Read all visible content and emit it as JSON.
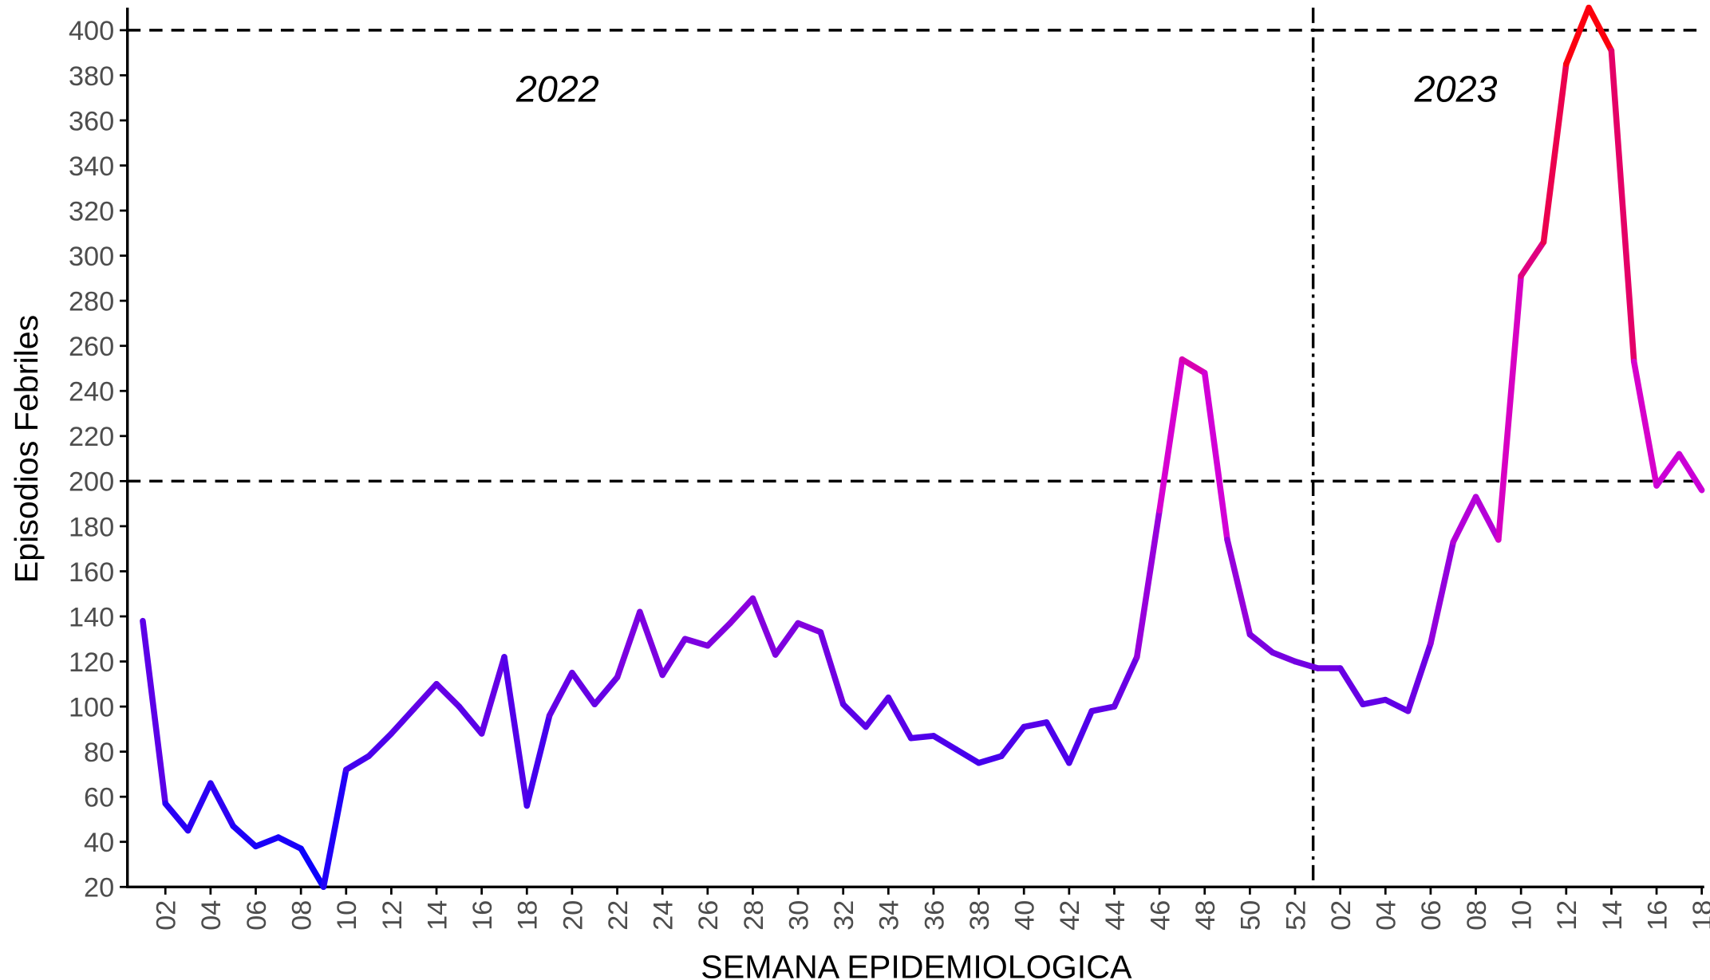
{
  "chart_data": {
    "type": "line",
    "x_label": "SEMANA EPIDEMIOLOGICA",
    "y_label": "Episodios Febriles",
    "ylim": [
      20,
      410
    ],
    "yticks": [
      20,
      40,
      60,
      80,
      100,
      120,
      140,
      160,
      180,
      200,
      220,
      240,
      260,
      280,
      300,
      320,
      340,
      360,
      380,
      400
    ],
    "reference_lines": [
      200,
      400
    ],
    "color_low": "#0000ff",
    "color_high": "#ff0000",
    "groups": [
      {
        "label": "2022",
        "categories": [
          null,
          "02",
          null,
          "04",
          null,
          "06",
          null,
          "08",
          null,
          "10",
          null,
          "12",
          null,
          "14",
          null,
          "16",
          null,
          "18",
          null,
          "20",
          null,
          "22",
          null,
          "24",
          null,
          "26",
          null,
          "28",
          null,
          "30",
          null,
          "32",
          null,
          "34",
          null,
          "36",
          null,
          "38",
          null,
          "40",
          null,
          "42",
          null,
          "44",
          null,
          "46",
          null,
          "48",
          null,
          "50",
          null,
          "52"
        ],
        "values": [
          138,
          57,
          45,
          66,
          47,
          38,
          42,
          37,
          20,
          72,
          78,
          88,
          99,
          110,
          100,
          88,
          122,
          56,
          96,
          115,
          101,
          113,
          142,
          114,
          130,
          127,
          137,
          148,
          123,
          137,
          133,
          101,
          91,
          104,
          86,
          87,
          81,
          75,
          78,
          91,
          93,
          75,
          98,
          100,
          122,
          187,
          254,
          248,
          174,
          132,
          124,
          120
        ]
      },
      {
        "label": "2023",
        "categories": [
          null,
          "02",
          null,
          "04",
          null,
          "06",
          null,
          "08",
          null,
          "10",
          null,
          "12",
          null,
          "14",
          null,
          "16",
          null,
          "18"
        ],
        "values": [
          117,
          117,
          101,
          103,
          98,
          128,
          173,
          193,
          174,
          291,
          306,
          385,
          410,
          391,
          253,
          198,
          212,
          196
        ]
      }
    ]
  }
}
